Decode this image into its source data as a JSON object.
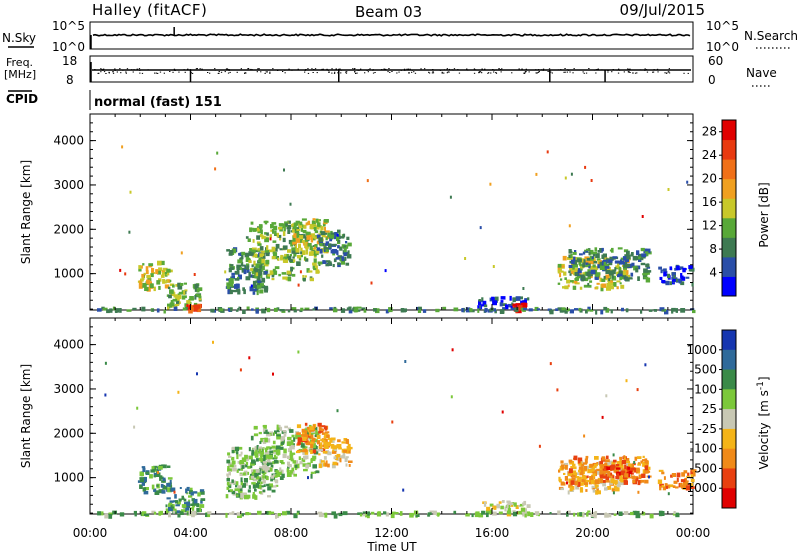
{
  "header": {
    "station": "Halley (fitACF)",
    "beam": "Beam 03",
    "date": "09/Jul/2015"
  },
  "labels": {
    "nsky": "N.Sky",
    "nsearch": "N.Search",
    "freq_top": "Freq.",
    "freq_unit": "[MHz]",
    "nave": "Nave",
    "cpid": "CPID",
    "cpid_value": "normal (fast) 151",
    "slant_range": "Slant Range [km]",
    "time_axis": "Time UT",
    "power_label": "Power [dB]",
    "velocity_label": "Velocity"
  },
  "noise_panel": {
    "left_ticks": [
      "10^5",
      "10^0"
    ],
    "right_ticks": [
      "10^5",
      "10^0"
    ]
  },
  "freq_panel": {
    "left_ticks": [
      "18",
      "8"
    ],
    "right_ticks": [
      "60",
      "0"
    ],
    "nave_spikes_hours": [
      4.0,
      9.9,
      18.3,
      20.5
    ]
  },
  "colors": {
    "power": [
      "#0000ff",
      "#2a4ea8",
      "#3e7a52",
      "#58a838",
      "#c8c82a",
      "#f0a020",
      "#f07018",
      "#e83a10",
      "#e00000"
    ],
    "velocity": [
      "#1636b0",
      "#2f6a9a",
      "#3a8a48",
      "#7cc83a",
      "#c8c8b4",
      "#f4b418",
      "#f08a18",
      "#e84010",
      "#e00000"
    ]
  },
  "chart_data": [
    {
      "type": "heatmap",
      "name": "power",
      "xlabel": "Time UT",
      "ylabel": "Slant Range [km]",
      "xlim": [
        0,
        24
      ],
      "ylim": [
        180,
        4600
      ],
      "x_ticks": [
        "00:00",
        "04:00",
        "08:00",
        "12:00",
        "16:00",
        "20:00",
        "00:00"
      ],
      "y_ticks": [
        1000,
        2000,
        3000,
        4000
      ],
      "colorbar": {
        "label": "Power [dB]",
        "range": [
          0,
          30
        ],
        "ticks": [
          4,
          8,
          12,
          16,
          20,
          24,
          28
        ]
      },
      "regions": [
        {
          "t0": 1.9,
          "t1": 3.2,
          "r0": 700,
          "r1": 1300,
          "level": 4
        },
        {
          "t0": 3.0,
          "t1": 4.4,
          "r0": 250,
          "r1": 800,
          "level": 3
        },
        {
          "t0": 3.8,
          "t1": 4.3,
          "r0": 200,
          "r1": 320,
          "level": 7
        },
        {
          "t0": 5.4,
          "t1": 7.0,
          "r0": 600,
          "r1": 1600,
          "level": 2
        },
        {
          "t0": 6.2,
          "t1": 9.0,
          "r0": 900,
          "r1": 2200,
          "level": 3
        },
        {
          "t0": 8.0,
          "t1": 9.4,
          "r0": 1500,
          "r1": 2250,
          "level": 4
        },
        {
          "t0": 9.0,
          "t1": 10.3,
          "r0": 1200,
          "r1": 2000,
          "level": 2
        },
        {
          "t0": 15.4,
          "t1": 17.4,
          "r0": 250,
          "r1": 500,
          "level": 1
        },
        {
          "t0": 16.7,
          "t1": 17.3,
          "r0": 200,
          "r1": 350,
          "level": 8
        },
        {
          "t0": 18.6,
          "t1": 21.4,
          "r0": 700,
          "r1": 1400,
          "level": 4
        },
        {
          "t0": 19.0,
          "t1": 22.2,
          "r0": 900,
          "r1": 1600,
          "level": 2
        },
        {
          "t0": 22.6,
          "t1": 24.0,
          "r0": 800,
          "r1": 1200,
          "level": 1
        },
        {
          "t0": 0.2,
          "t1": 24.0,
          "r0": 180,
          "r1": 260,
          "level": 2
        }
      ]
    },
    {
      "type": "heatmap",
      "name": "velocity",
      "xlabel": "Time UT",
      "ylabel": "Slant Range [km]",
      "xlim": [
        0,
        24
      ],
      "ylim": [
        180,
        4600
      ],
      "x_ticks": [
        "00:00",
        "04:00",
        "08:00",
        "12:00",
        "16:00",
        "20:00",
        "00:00"
      ],
      "y_ticks": [
        1000,
        2000,
        3000,
        4000
      ],
      "colorbar": {
        "label": "Velocity [m s^-1]",
        "ticks": [
          1000,
          500,
          100,
          25,
          -25,
          -100,
          -500,
          -1000
        ]
      },
      "regions": [
        {
          "t0": 1.9,
          "t1": 3.2,
          "r0": 700,
          "r1": 1300,
          "level": 2
        },
        {
          "t0": 3.0,
          "t1": 4.4,
          "r0": 250,
          "r1": 800,
          "level": 2
        },
        {
          "t0": 5.4,
          "t1": 7.4,
          "r0": 600,
          "r1": 1700,
          "level": 3
        },
        {
          "t0": 6.4,
          "t1": 9.0,
          "r0": 1000,
          "r1": 2200,
          "level": 3
        },
        {
          "t0": 8.2,
          "t1": 9.4,
          "r0": 1600,
          "r1": 2250,
          "level": 6
        },
        {
          "t0": 9.0,
          "t1": 10.3,
          "r0": 1300,
          "r1": 2000,
          "level": 5
        },
        {
          "t0": 15.6,
          "t1": 17.4,
          "r0": 220,
          "r1": 500,
          "level": 4
        },
        {
          "t0": 18.6,
          "t1": 21.4,
          "r0": 700,
          "r1": 1400,
          "level": 5
        },
        {
          "t0": 19.0,
          "t1": 22.2,
          "r0": 900,
          "r1": 1500,
          "level": 6
        },
        {
          "t0": 20.4,
          "t1": 21.6,
          "r0": 1050,
          "r1": 1300,
          "level": 7
        },
        {
          "t0": 22.6,
          "t1": 24.0,
          "r0": 800,
          "r1": 1200,
          "level": 6
        },
        {
          "t0": 0.2,
          "t1": 24.0,
          "r0": 180,
          "r1": 260,
          "level": 3
        }
      ]
    }
  ]
}
